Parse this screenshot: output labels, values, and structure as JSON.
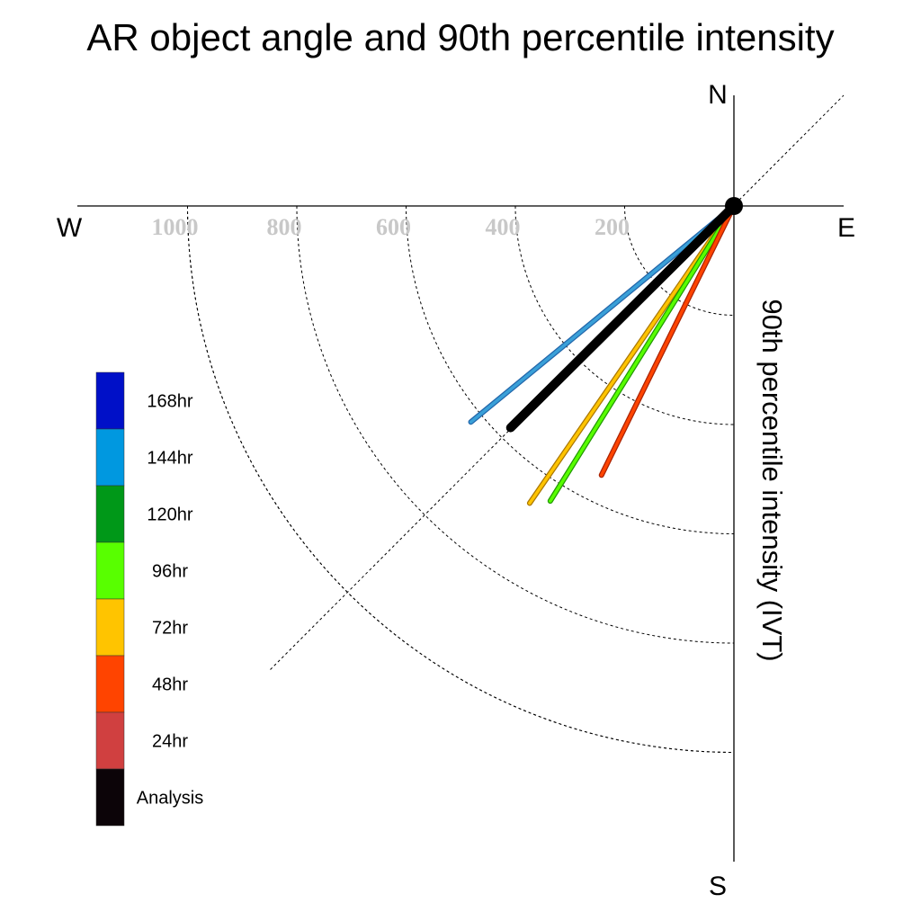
{
  "chart_data": {
    "type": "polar-vector",
    "title": "AR object angle and 90th percentile intensity",
    "ylabel": "90th percentile intensity (IVT)",
    "directions": {
      "north": "N",
      "south": "S",
      "east": "E",
      "west": "W"
    },
    "radial_range": [
      0,
      1200
    ],
    "radial_ticks": [
      200,
      400,
      600,
      800,
      1000
    ],
    "radial_tick_labels": [
      "200",
      "400",
      "600",
      "800",
      "1000"
    ],
    "grid": true,
    "legend_position": "left",
    "legend": [
      {
        "label": "168hr",
        "color": "#0010c8"
      },
      {
        "label": "144hr",
        "color": "#0098e0"
      },
      {
        "label": "120hr",
        "color": "#009818"
      },
      {
        "label": "96hr",
        "color": "#58ff00"
      },
      {
        "label": "72hr",
        "color": "#ffc400"
      },
      {
        "label": "48hr",
        "color": "#ff4400"
      },
      {
        "label": "24hr",
        "color": "#d04040"
      },
      {
        "label": "Analysis",
        "color": "#0c0408"
      }
    ],
    "series": [
      {
        "name": "144hr",
        "angle_deg": 230.6,
        "intensity": 623,
        "color": "#3aa0d8",
        "outline": "#2266aa"
      },
      {
        "name": "72hr",
        "angle_deg": 214.5,
        "intensity": 660,
        "color": "#ffc400",
        "outline": "#aa7700"
      },
      {
        "name": "96hr",
        "angle_deg": 211.9,
        "intensity": 636,
        "color": "#58ff00",
        "outline": "#229900"
      },
      {
        "name": "48hr",
        "angle_deg": 206.2,
        "intensity": 549,
        "color": "#ff4400",
        "outline": "#aa2200"
      },
      {
        "name": "Analysis",
        "angle_deg": 225.2,
        "intensity": 576,
        "color": "#000000",
        "outline": "#000000"
      }
    ]
  }
}
